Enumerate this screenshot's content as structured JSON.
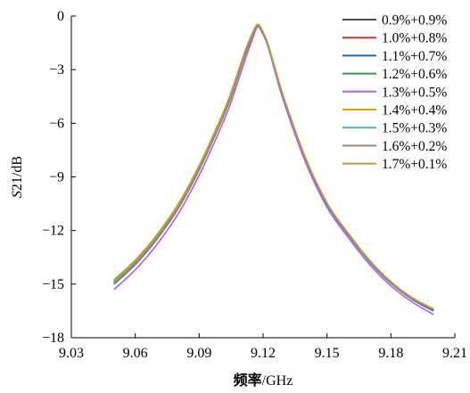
{
  "chart_data": {
    "type": "line",
    "title": "",
    "xlabel": "频率/GHz",
    "xlabel_bold_part": "频率",
    "xlabel_unit_part": "/GHz",
    "ylabel": "S21/dB",
    "ylabel_italic_part": "S",
    "ylabel_rest_part": "21/dB",
    "xlim": [
      9.03,
      9.21
    ],
    "ylim": [
      -18,
      0
    ],
    "xticks": [
      "9.03",
      "9.06",
      "9.09",
      "9.12",
      "9.15",
      "9.18",
      "9.21"
    ],
    "yticks": [
      "0",
      "−3",
      "−6",
      "−9",
      "−12",
      "−15",
      "−18"
    ],
    "xtick_values": [
      9.03,
      9.06,
      9.09,
      9.12,
      9.15,
      9.18,
      9.21
    ],
    "ytick_values": [
      0,
      -3,
      -6,
      -9,
      -12,
      -15,
      -18
    ],
    "grid": false,
    "legend_position": "top-right",
    "x": [
      9.05,
      9.06,
      9.07,
      9.08,
      9.09,
      9.1,
      9.105,
      9.11,
      9.113,
      9.116,
      9.1175,
      9.119,
      9.122,
      9.125,
      9.13,
      9.14,
      9.15,
      9.16,
      9.17,
      9.18,
      9.19,
      9.2
    ],
    "series": [
      {
        "name": "0.9%+0.9%",
        "color": "#4d4d4d",
        "values": [
          -14.9,
          -13.8,
          -12.4,
          -10.7,
          -8.5,
          -5.9,
          -4.4,
          -2.6,
          -1.6,
          -0.75,
          -0.5,
          -0.7,
          -1.5,
          -2.7,
          -4.7,
          -8.0,
          -10.5,
          -12.2,
          -13.7,
          -14.9,
          -15.8,
          -16.4
        ]
      },
      {
        "name": "1.0%+0.8%",
        "color": "#e03030",
        "values": [
          -14.95,
          -13.85,
          -12.45,
          -10.75,
          -8.55,
          -5.95,
          -4.45,
          -2.65,
          -1.65,
          -0.78,
          -0.52,
          -0.72,
          -1.52,
          -2.72,
          -4.72,
          -8.02,
          -10.52,
          -12.22,
          -13.72,
          -14.92,
          -15.82,
          -16.45
        ]
      },
      {
        "name": "1.1%+0.7%",
        "color": "#1f64c8",
        "values": [
          -15.0,
          -13.9,
          -12.5,
          -10.8,
          -8.6,
          -6.0,
          -4.5,
          -2.7,
          -1.7,
          -0.8,
          -0.55,
          -0.75,
          -1.55,
          -2.75,
          -4.75,
          -8.05,
          -10.55,
          -12.25,
          -13.75,
          -14.95,
          -15.85,
          -16.5
        ]
      },
      {
        "name": "1.2%+0.6%",
        "color": "#2e9e3e",
        "values": [
          -14.85,
          -13.75,
          -12.35,
          -10.65,
          -8.45,
          -5.85,
          -4.35,
          -2.55,
          -1.55,
          -0.72,
          -0.48,
          -0.68,
          -1.48,
          -2.68,
          -4.68,
          -7.98,
          -10.48,
          -12.18,
          -13.68,
          -14.88,
          -15.78,
          -16.42
        ]
      },
      {
        "name": "1.3%+0.5%",
        "color": "#b05fe0",
        "values": [
          -15.3,
          -14.2,
          -12.8,
          -11.1,
          -8.9,
          -6.3,
          -4.8,
          -3.0,
          -1.95,
          -0.95,
          -0.6,
          -0.8,
          -1.6,
          -2.85,
          -4.9,
          -8.2,
          -10.7,
          -12.4,
          -13.9,
          -15.1,
          -16.0,
          -16.7
        ]
      },
      {
        "name": "1.4%+0.4%",
        "color": "#e0a000",
        "values": [
          -14.75,
          -13.65,
          -12.25,
          -10.55,
          -8.35,
          -5.75,
          -4.25,
          -2.5,
          -1.5,
          -0.7,
          -0.46,
          -0.66,
          -1.46,
          -2.66,
          -4.66,
          -7.96,
          -10.46,
          -12.16,
          -13.66,
          -14.86,
          -15.76,
          -16.38
        ]
      },
      {
        "name": "1.5%+0.3%",
        "color": "#2ec0c0",
        "values": [
          -14.9,
          -13.8,
          -12.4,
          -10.7,
          -8.5,
          -5.9,
          -4.4,
          -2.6,
          -1.6,
          -0.76,
          -0.5,
          -0.7,
          -1.5,
          -2.7,
          -4.7,
          -8.0,
          -10.5,
          -12.2,
          -13.7,
          -14.9,
          -15.8,
          -16.4
        ]
      },
      {
        "name": "1.6%+0.2%",
        "color": "#a88080",
        "values": [
          -14.95,
          -13.85,
          -12.45,
          -10.75,
          -8.55,
          -5.95,
          -4.45,
          -2.65,
          -1.65,
          -0.78,
          -0.51,
          -0.71,
          -1.51,
          -2.71,
          -4.71,
          -8.01,
          -10.51,
          -12.21,
          -13.71,
          -14.91,
          -15.81,
          -16.43
        ]
      },
      {
        "name": "1.7%+0.1%",
        "color": "#b0a040",
        "values": [
          -14.8,
          -13.7,
          -12.3,
          -10.6,
          -8.4,
          -5.8,
          -4.3,
          -2.5,
          -1.5,
          -0.7,
          -0.47,
          -0.67,
          -1.47,
          -2.67,
          -4.67,
          -7.97,
          -10.47,
          -12.17,
          -13.67,
          -14.87,
          -15.77,
          -16.4
        ]
      }
    ]
  }
}
